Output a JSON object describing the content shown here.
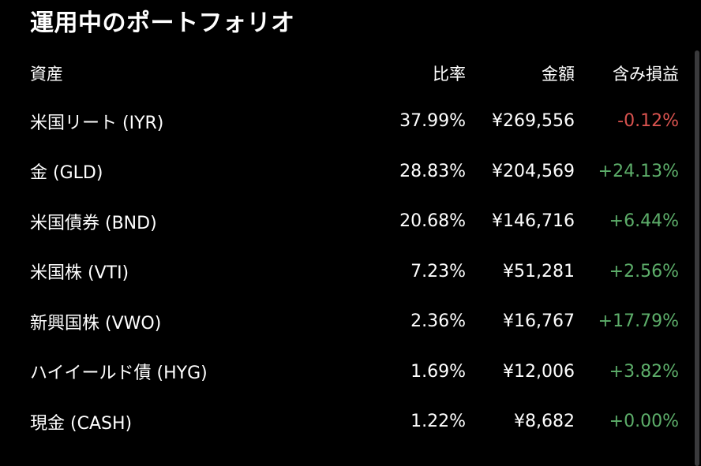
{
  "title": "運用中のポートフォリオ",
  "columns": {
    "asset": "資産",
    "ratio": "比率",
    "amount": "金額",
    "pl": "含み損益"
  },
  "rows": [
    {
      "asset": "米国リート (IYR)",
      "ratio": "37.99%",
      "amount": "¥269,556",
      "pl": "-0.12%",
      "status": "negative"
    },
    {
      "asset": "金 (GLD)",
      "ratio": "28.83%",
      "amount": "¥204,569",
      "pl": "+24.13%",
      "status": "positive"
    },
    {
      "asset": "米国債券 (BND)",
      "ratio": "20.68%",
      "amount": "¥146,716",
      "pl": "+6.44%",
      "status": "positive"
    },
    {
      "asset": "米国株 (VTI)",
      "ratio": "7.23%",
      "amount": "¥51,281",
      "pl": "+2.56%",
      "status": "positive"
    },
    {
      "asset": "新興国株 (VWO)",
      "ratio": "2.36%",
      "amount": "¥16,767",
      "pl": "+17.79%",
      "status": "positive"
    },
    {
      "asset": "ハイイールド債 (HYG)",
      "ratio": "1.69%",
      "amount": "¥12,006",
      "pl": "+3.82%",
      "status": "positive"
    },
    {
      "asset": "現金 (CASH)",
      "ratio": "1.22%",
      "amount": "¥8,682",
      "pl": "+0.00%",
      "status": "positive"
    }
  ],
  "colors": {
    "background": "#000000",
    "text": "#ffffff",
    "positive": "#5dae6a",
    "negative": "#d9534f"
  }
}
